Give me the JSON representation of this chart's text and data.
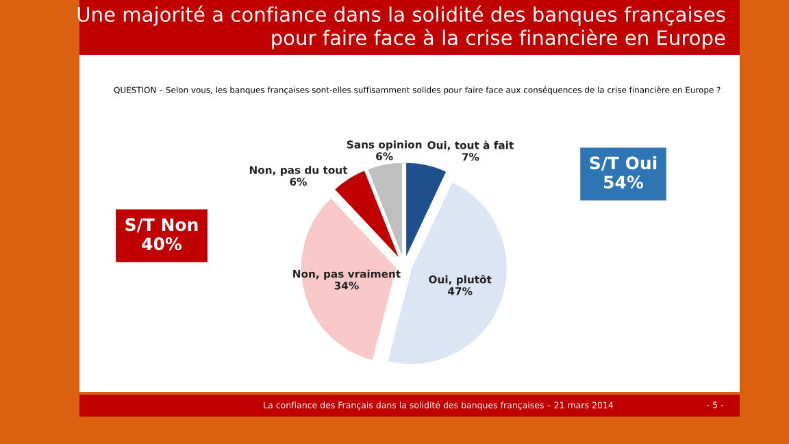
{
  "chart_data": {
    "type": "pie",
    "title": "Une majorité a confiance dans la solidité des banques françaises\npour faire face à la crise financière en Europe",
    "subtitle": "QUESTION – Selon vous, les banques françaises sont-elles suffisamment solides pour faire face aux conséquences de la crise financière en Europe ?",
    "categories": [
      "Oui, tout à fait",
      "Oui, plutôt",
      "Non, pas vraiment",
      "Non, pas du tout",
      "Sans opinion"
    ],
    "values": [
      7,
      47,
      34,
      6,
      6
    ],
    "colors": [
      "#1f4e8c",
      "#dbe5f3",
      "#f9c9c9",
      "#c00000",
      "#bfbfbf"
    ],
    "value_labels": [
      "7%",
      "47%",
      "34%",
      "6%",
      "6%"
    ],
    "annotations": [
      "S/T Oui\n54%",
      "S/T Non\n40%",
      "La confiance des Français dans la solidité des banques françaises – 21 mars 2014",
      "- 5 -"
    ],
    "legend": false
  }
}
